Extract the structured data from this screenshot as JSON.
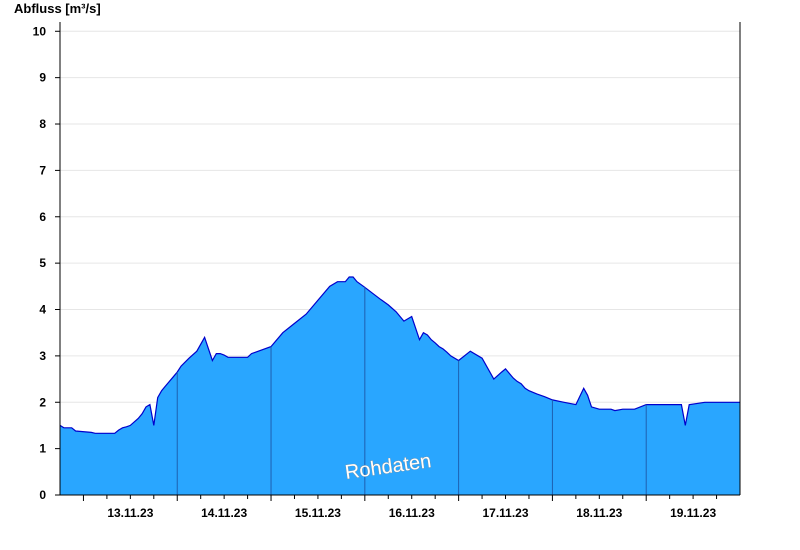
{
  "chart_data": {
    "type": "area",
    "title": "",
    "ylabel": "Abfluss [m³/s]",
    "xlabel": "",
    "watermark": "Rohdaten",
    "ylim": [
      0,
      10.2
    ],
    "yticks": [
      0,
      1,
      2,
      3,
      4,
      5,
      6,
      7,
      8,
      9,
      10
    ],
    "xlim": [
      "12.11.23 18:00",
      "20.11.23 00:00"
    ],
    "xticks": [
      "13.11.23",
      "14.11.23",
      "15.11.23",
      "16.11.23",
      "17.11.23",
      "18.11.23",
      "19.11.23"
    ],
    "grid": true,
    "colors": {
      "fill": "#29a6ff",
      "line": "#0000cc",
      "grid": "#e6e6e6",
      "day_separator": "#1e5fb0"
    },
    "series": [
      {
        "x": [
          "12.11.23 18:00",
          "12.11.23 19:00",
          "12.11.23 21:00",
          "12.11.23 22:00",
          "13.11.23 02:00",
          "13.11.23 03:00",
          "13.11.23 08:00",
          "13.11.23 09:00",
          "13.11.23 10:00",
          "13.11.23 11:00",
          "13.11.23 12:00",
          "13.11.23 14:00",
          "13.11.23 15:00",
          "13.11.23 16:00",
          "13.11.23 17:00",
          "13.11.23 18:00",
          "13.11.23 19:00",
          "13.11.23 20:00",
          "13.11.23 21:00",
          "13.11.23 22:00",
          "13.11.23 23:00",
          "14.11.23 00:00",
          "14.11.23 01:00",
          "14.11.23 03:00",
          "14.11.23 05:00",
          "14.11.23 07:00",
          "14.11.23 09:00",
          "14.11.23 10:00",
          "14.11.23 11:00",
          "14.11.23 12:00",
          "14.11.23 13:00",
          "14.11.23 14:00",
          "14.11.23 15:00",
          "14.11.23 18:00",
          "14.11.23 19:00",
          "15.11.23 00:00",
          "15.11.23 03:00",
          "15.11.23 06:00",
          "15.11.23 09:00",
          "15.11.23 12:00",
          "15.11.23 15:00",
          "15.11.23 17:00",
          "15.11.23 19:00",
          "15.11.23 20:00",
          "15.11.23 21:00",
          "15.11.23 22:00",
          "16.11.23 00:00",
          "16.11.23 02:00",
          "16.11.23 04:00",
          "16.11.23 06:00",
          "16.11.23 08:00",
          "16.11.23 10:00",
          "16.11.23 12:00",
          "16.11.23 14:00",
          "16.11.23 15:00",
          "16.11.23 16:00",
          "16.11.23 17:00",
          "16.11.23 18:00",
          "16.11.23 19:00",
          "16.11.23 20:00",
          "16.11.23 21:00",
          "16.11.23 22:00",
          "17.11.23 00:00",
          "17.11.23 03:00",
          "17.11.23 06:00",
          "17.11.23 09:00",
          "17.11.23 11:00",
          "17.11.23 12:00",
          "17.11.23 13:00",
          "17.11.23 14:00",
          "17.11.23 15:00",
          "17.11.23 16:00",
          "17.11.23 17:00",
          "17.11.23 18:00",
          "17.11.23 20:00",
          "17.11.23 22:00",
          "18.11.23 00:00",
          "18.11.23 03:00",
          "18.11.23 06:00",
          "18.11.23 08:00",
          "18.11.23 09:00",
          "18.11.23 10:00",
          "18.11.23 12:00",
          "18.11.23 14:00",
          "18.11.23 15:00",
          "18.11.23 16:00",
          "18.11.23 18:00",
          "18.11.23 21:00",
          "19.11.23 00:00",
          "19.11.23 06:00",
          "19.11.23 09:00",
          "19.11.23 10:00",
          "19.11.23 11:00",
          "19.11.23 15:00",
          "19.11.23 18:00",
          "19.11.23 19:00",
          "19.11.23 20:00",
          "19.11.23 21:00",
          "19.11.23 22:00",
          "20.11.23 00:00"
        ],
        "values": [
          1.5,
          1.45,
          1.45,
          1.38,
          1.35,
          1.33,
          1.33,
          1.4,
          1.45,
          1.47,
          1.5,
          1.65,
          1.75,
          1.9,
          1.95,
          1.5,
          2.1,
          2.25,
          2.35,
          2.45,
          2.55,
          2.65,
          2.78,
          2.95,
          3.1,
          3.4,
          2.9,
          3.05,
          3.05,
          3.02,
          2.97,
          2.97,
          2.97,
          2.97,
          3.05,
          3.2,
          3.5,
          3.7,
          3.9,
          4.2,
          4.5,
          4.6,
          4.6,
          4.7,
          4.7,
          4.6,
          4.48,
          4.35,
          4.22,
          4.1,
          3.95,
          3.75,
          3.85,
          3.35,
          3.5,
          3.45,
          3.35,
          3.28,
          3.2,
          3.15,
          3.08,
          3.0,
          2.9,
          3.1,
          2.95,
          2.5,
          2.65,
          2.72,
          2.62,
          2.52,
          2.45,
          2.4,
          2.3,
          2.25,
          2.18,
          2.12,
          2.05,
          2.0,
          1.95,
          2.3,
          2.15,
          1.9,
          1.85,
          1.85,
          1.85,
          1.82,
          1.85,
          1.85,
          1.95,
          1.95,
          1.95,
          1.5,
          1.95,
          2.0,
          2.0,
          2.0,
          2.0,
          2.0,
          2.0,
          2.0
        ]
      }
    ]
  }
}
